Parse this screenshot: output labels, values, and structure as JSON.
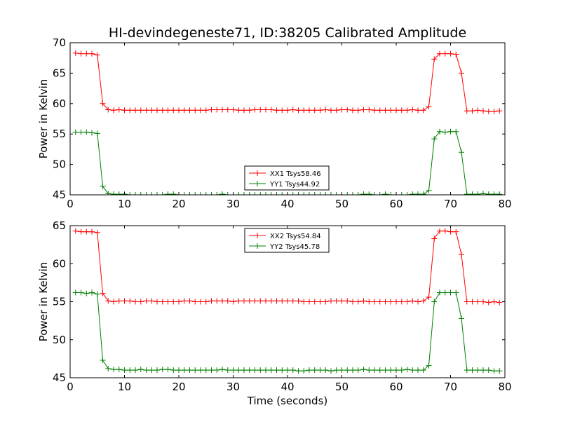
{
  "figure": {
    "title": "HI-devindegeneste71, ID:38205 Calibrated Amplitude",
    "xlabel": "Time (seconds)"
  },
  "colors": {
    "red": "#ff0000",
    "green": "#008000",
    "axis": "#000000"
  },
  "chart_data": [
    {
      "type": "line",
      "ylabel": "Power in Kelvin",
      "xlim": [
        0,
        80
      ],
      "ylim": [
        45,
        70
      ],
      "xticks": [
        "0",
        "10",
        "20",
        "30",
        "40",
        "50",
        "60",
        "70",
        "80"
      ],
      "yticks": [
        "45",
        "50",
        "55",
        "60",
        "65",
        "70"
      ],
      "legend_position": "lower-center",
      "series": [
        {
          "name": "XX1 Tsys58.46",
          "color": "#ff0000",
          "x": [
            1,
            2,
            3,
            4,
            5,
            6,
            7,
            8,
            9,
            10,
            11,
            12,
            13,
            14,
            15,
            16,
            17,
            18,
            19,
            20,
            21,
            22,
            23,
            24,
            25,
            26,
            27,
            28,
            29,
            30,
            31,
            32,
            33,
            34,
            35,
            36,
            37,
            38,
            39,
            40,
            41,
            42,
            43,
            44,
            45,
            46,
            47,
            48,
            49,
            50,
            51,
            52,
            53,
            54,
            55,
            56,
            57,
            58,
            59,
            60,
            61,
            62,
            63,
            64,
            65,
            66,
            67,
            68,
            69,
            70,
            71,
            72,
            73,
            74,
            75,
            76,
            77,
            78,
            79
          ],
          "y": [
            68.3,
            68.2,
            68.2,
            68.2,
            68.0,
            60.0,
            59.0,
            58.9,
            59.0,
            58.9,
            58.9,
            58.9,
            58.9,
            58.9,
            58.9,
            58.9,
            58.9,
            58.9,
            58.9,
            58.9,
            58.9,
            58.9,
            58.9,
            58.9,
            58.9,
            59.0,
            59.0,
            59.0,
            59.0,
            59.0,
            58.9,
            58.9,
            58.9,
            59.0,
            59.0,
            59.0,
            59.0,
            58.9,
            58.9,
            58.9,
            59.0,
            58.9,
            58.9,
            58.9,
            58.9,
            58.9,
            59.0,
            58.9,
            58.9,
            59.0,
            59.0,
            58.9,
            58.9,
            59.0,
            59.0,
            58.9,
            58.9,
            58.9,
            58.9,
            58.9,
            58.9,
            58.9,
            59.0,
            58.9,
            58.9,
            59.5,
            67.3,
            68.2,
            68.2,
            68.2,
            68.1,
            65.0,
            58.8,
            58.8,
            58.9,
            58.8,
            58.7,
            58.7,
            58.8
          ]
        },
        {
          "name": "YY1 Tsys44.92",
          "color": "#008000",
          "x": [
            1,
            2,
            3,
            4,
            5,
            6,
            7,
            8,
            9,
            10,
            11,
            12,
            13,
            14,
            15,
            16,
            17,
            18,
            19,
            20,
            21,
            22,
            23,
            24,
            25,
            26,
            27,
            28,
            29,
            30,
            31,
            32,
            33,
            34,
            35,
            36,
            37,
            38,
            39,
            40,
            41,
            42,
            43,
            44,
            45,
            46,
            47,
            48,
            49,
            50,
            51,
            52,
            53,
            54,
            55,
            56,
            57,
            58,
            59,
            60,
            61,
            62,
            63,
            64,
            65,
            66,
            67,
            68,
            69,
            70,
            71,
            72,
            73,
            74,
            75,
            76,
            77,
            78,
            79
          ],
          "y": [
            55.3,
            55.3,
            55.3,
            55.2,
            55.1,
            46.4,
            45.2,
            45.1,
            45.1,
            45.1,
            45.0,
            45.0,
            45.0,
            45.0,
            45.0,
            45.0,
            45.0,
            45.1,
            45.1,
            45.0,
            45.0,
            45.0,
            45.0,
            45.0,
            45.0,
            45.0,
            45.0,
            45.1,
            45.0,
            45.0,
            45.0,
            45.0,
            45.0,
            45.0,
            45.0,
            45.0,
            45.0,
            45.0,
            45.0,
            45.0,
            45.0,
            45.0,
            45.0,
            45.0,
            45.0,
            45.0,
            45.0,
            45.0,
            45.0,
            45.0,
            45.0,
            45.0,
            45.0,
            45.1,
            45.1,
            45.0,
            45.0,
            45.1,
            45.0,
            45.0,
            45.0,
            45.0,
            45.1,
            45.1,
            45.1,
            45.7,
            54.2,
            55.4,
            55.3,
            55.4,
            55.4,
            52.0,
            45.1,
            45.1,
            45.1,
            45.2,
            45.1,
            45.1,
            45.1
          ]
        }
      ]
    },
    {
      "type": "line",
      "ylabel": "Power in Kelvin",
      "xlim": [
        0,
        80
      ],
      "ylim": [
        45,
        65
      ],
      "xticks": [
        "0",
        "10",
        "20",
        "30",
        "40",
        "50",
        "60",
        "70",
        "80"
      ],
      "yticks": [
        "45",
        "50",
        "55",
        "60",
        "65"
      ],
      "legend_position": "upper-center",
      "series": [
        {
          "name": "XX2 Tsys54.84",
          "color": "#ff0000",
          "x": [
            1,
            2,
            3,
            4,
            5,
            6,
            7,
            8,
            9,
            10,
            11,
            12,
            13,
            14,
            15,
            16,
            17,
            18,
            19,
            20,
            21,
            22,
            23,
            24,
            25,
            26,
            27,
            28,
            29,
            30,
            31,
            32,
            33,
            34,
            35,
            36,
            37,
            38,
            39,
            40,
            41,
            42,
            43,
            44,
            45,
            46,
            47,
            48,
            49,
            50,
            51,
            52,
            53,
            54,
            55,
            56,
            57,
            58,
            59,
            60,
            61,
            62,
            63,
            64,
            65,
            66,
            67,
            68,
            69,
            70,
            71,
            72,
            73,
            74,
            75,
            76,
            77,
            78,
            79
          ],
          "y": [
            64.3,
            64.2,
            64.2,
            64.2,
            64.1,
            56.1,
            55.1,
            55.0,
            55.1,
            55.1,
            55.1,
            55.0,
            55.0,
            55.1,
            55.1,
            55.0,
            55.0,
            55.0,
            55.0,
            55.0,
            55.1,
            55.1,
            55.0,
            55.0,
            55.0,
            55.1,
            55.1,
            55.1,
            55.1,
            55.0,
            55.1,
            55.1,
            55.1,
            55.1,
            55.1,
            55.1,
            55.1,
            55.1,
            55.1,
            55.1,
            55.1,
            55.1,
            55.0,
            55.0,
            55.0,
            55.0,
            55.0,
            55.1,
            55.1,
            55.1,
            55.1,
            55.0,
            55.0,
            55.1,
            55.0,
            55.0,
            55.0,
            55.0,
            55.0,
            55.0,
            55.0,
            55.0,
            55.1,
            55.0,
            55.1,
            55.6,
            63.3,
            64.3,
            64.3,
            64.2,
            64.2,
            61.2,
            55.0,
            55.0,
            55.0,
            55.0,
            54.9,
            55.0,
            54.9
          ]
        },
        {
          "name": "YY2 Tsys45.78",
          "color": "#008000",
          "x": [
            1,
            2,
            3,
            4,
            5,
            6,
            7,
            8,
            9,
            10,
            11,
            12,
            13,
            14,
            15,
            16,
            17,
            18,
            19,
            20,
            21,
            22,
            23,
            24,
            25,
            26,
            27,
            28,
            29,
            30,
            31,
            32,
            33,
            34,
            35,
            36,
            37,
            38,
            39,
            40,
            41,
            42,
            43,
            44,
            45,
            46,
            47,
            48,
            49,
            50,
            51,
            52,
            53,
            54,
            55,
            56,
            57,
            58,
            59,
            60,
            61,
            62,
            63,
            64,
            65,
            66,
            67,
            68,
            69,
            70,
            71,
            72,
            73,
            74,
            75,
            76,
            77,
            78,
            79
          ],
          "y": [
            56.2,
            56.2,
            56.1,
            56.2,
            56.0,
            47.3,
            46.2,
            46.1,
            46.1,
            46.0,
            46.0,
            46.0,
            46.1,
            46.0,
            46.0,
            46.0,
            46.1,
            46.1,
            46.0,
            46.0,
            46.0,
            46.0,
            46.0,
            46.0,
            46.0,
            46.0,
            46.0,
            46.1,
            46.0,
            46.0,
            46.0,
            46.0,
            46.0,
            46.0,
            46.0,
            46.0,
            46.0,
            46.0,
            46.0,
            46.0,
            46.0,
            45.9,
            45.9,
            46.0,
            46.0,
            46.0,
            46.0,
            45.9,
            46.0,
            46.0,
            46.0,
            46.0,
            46.0,
            46.1,
            46.0,
            46.0,
            46.0,
            46.0,
            46.0,
            46.0,
            46.0,
            46.1,
            46.0,
            46.0,
            46.0,
            46.6,
            55.0,
            56.2,
            56.2,
            56.2,
            56.2,
            52.8,
            46.0,
            46.0,
            46.0,
            46.0,
            46.0,
            45.9,
            45.9
          ]
        }
      ]
    }
  ]
}
